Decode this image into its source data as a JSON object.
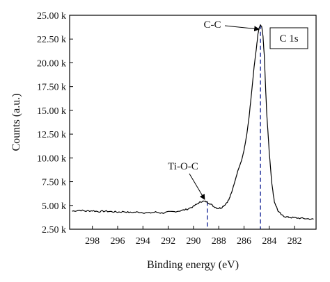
{
  "chart_data": {
    "type": "line",
    "xlabel": "Binding energy (eV)",
    "ylabel": "Counts (a.u.)",
    "xlim": [
      299.8,
      280.3
    ],
    "ylim": [
      2500,
      25000
    ],
    "x_reversed": true,
    "x_ticks": [
      298,
      296,
      294,
      292,
      290,
      288,
      286,
      284,
      282
    ],
    "x_tick_labels": [
      "298",
      "296",
      "294",
      "292",
      "290",
      "288",
      "286",
      "284",
      "282"
    ],
    "y_ticks": [
      2500,
      5000,
      7500,
      10000,
      12500,
      15000,
      17500,
      20000,
      22500,
      25000
    ],
    "y_tick_labels": [
      "2.50 k",
      "5.00 k",
      "7.50 k",
      "10.00 k",
      "12.50 k",
      "15.00 k",
      "17.50 k",
      "20.00 k",
      "22.50 k",
      "25.00 k"
    ],
    "grid": false,
    "legend": {
      "label": "C 1s",
      "placement": "top-right"
    },
    "series": [
      {
        "color": "#000000",
        "x": [
          299.6,
          299,
          298.5,
          298,
          297.5,
          297,
          296.5,
          296,
          295.5,
          295,
          294.5,
          294,
          293.5,
          293,
          292.5,
          292,
          291.5,
          291,
          290.5,
          290,
          289.6,
          289.3,
          289.0,
          288.7,
          288.4,
          288.1,
          287.8,
          287.5,
          287.2,
          287.0,
          286.8,
          286.5,
          286.2,
          286.0,
          285.8,
          285.6,
          285.4,
          285.2,
          285.0,
          284.9,
          284.8,
          284.7,
          284.6,
          284.5,
          284.4,
          284.3,
          284.2,
          284.0,
          283.8,
          283.6,
          283.3,
          283.0,
          282.7,
          282.4,
          282.0,
          281.5,
          281.0,
          280.5
        ],
        "y": [
          4400,
          4500,
          4400,
          4450,
          4350,
          4400,
          4350,
          4300,
          4350,
          4250,
          4300,
          4250,
          4200,
          4300,
          4200,
          4300,
          4350,
          4450,
          4600,
          4900,
          5250,
          5450,
          5400,
          5200,
          4900,
          4700,
          4750,
          5100,
          5600,
          6300,
          7200,
          8600,
          9700,
          10800,
          12300,
          14300,
          16900,
          19600,
          21800,
          23000,
          23700,
          24000,
          23800,
          22800,
          20800,
          17600,
          14600,
          10500,
          7300,
          5400,
          4400,
          3950,
          3800,
          3750,
          3700,
          3650,
          3600,
          3550
        ]
      }
    ],
    "annotations": [
      {
        "label": "C-C",
        "x": 284.7
      },
      {
        "label": "Ti-O-C",
        "x": 288.9
      }
    ],
    "reference_lines": [
      {
        "x": 284.7,
        "y_top": 24000,
        "color": "#2b3aa0",
        "style": "dashed"
      },
      {
        "x": 288.9,
        "y_top": 5400,
        "color": "#2b3aa0",
        "style": "dashed"
      }
    ]
  }
}
